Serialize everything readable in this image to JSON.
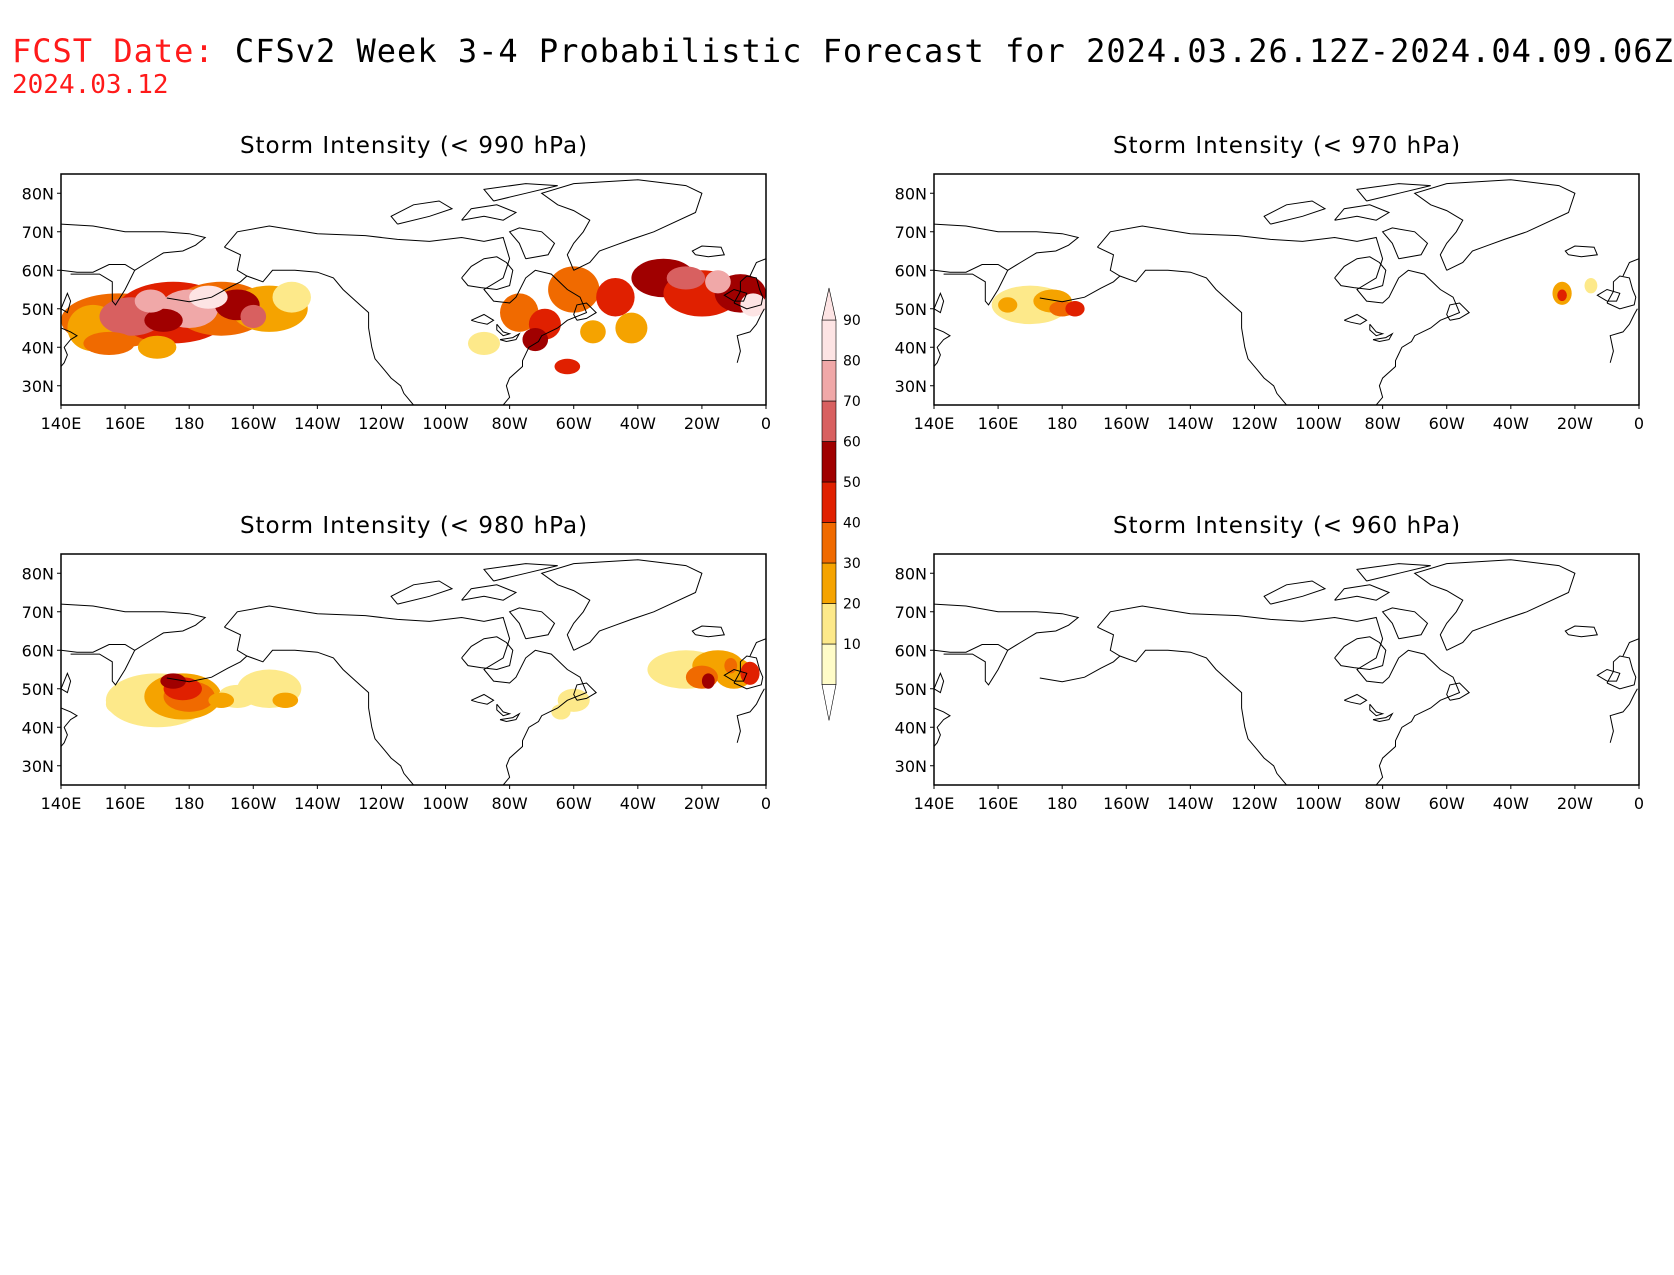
{
  "header": {
    "fcst_label": "FCST Date:",
    "fcst_date": "2024.03.12",
    "title": "CFSv2 Week 3-4 Probabilistic Forecast for 2024.03.26.12Z-2024.04.09.06Z"
  },
  "axes": {
    "x_ticks": [
      "140E",
      "160E",
      "180",
      "160W",
      "140W",
      "120W",
      "100W",
      "80W",
      "60W",
      "40W",
      "20W",
      "0"
    ],
    "y_ticks": [
      "80N",
      "70N",
      "60N",
      "50N",
      "40N",
      "30N"
    ]
  },
  "panels": [
    {
      "title": "Storm Intensity (< 990 hPa)"
    },
    {
      "title": "Storm Intensity (< 970 hPa)"
    },
    {
      "title": "Storm Intensity (< 980 hPa)"
    },
    {
      "title": "Storm Intensity (< 960 hPa)"
    }
  ],
  "colorbar": {
    "levels": [
      "10",
      "20",
      "30",
      "40",
      "50",
      "60",
      "70",
      "80",
      "90"
    ],
    "colors": [
      "#fffcc8",
      "#fde98a",
      "#f5a300",
      "#f06a00",
      "#e02000",
      "#a00000",
      "#d86060",
      "#f0a8a8",
      "#fde4e4"
    ]
  }
}
